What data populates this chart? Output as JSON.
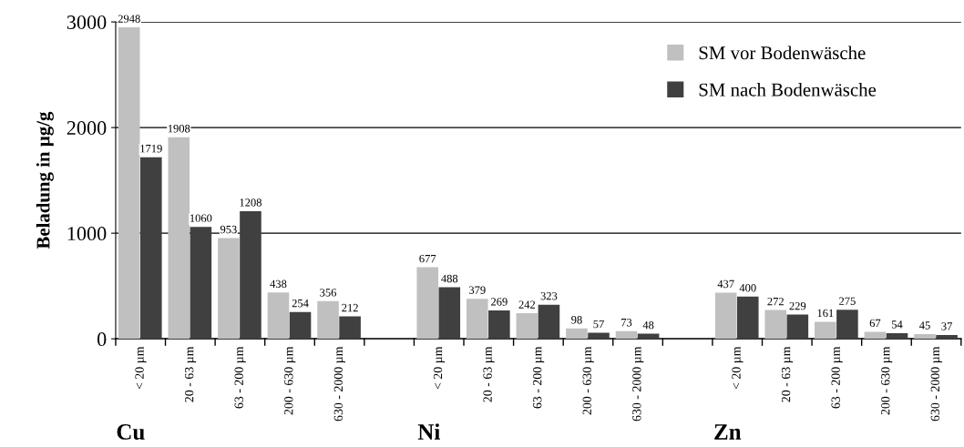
{
  "chart_data": {
    "type": "bar",
    "ylabel": "Beladung in µg/g",
    "categories": [
      "< 20 µm",
      "20 - 63 µm",
      "63 - 200 µm",
      "200 - 630 µm",
      "630 - 2000 µm",
      null,
      "< 20 µm",
      "20 - 63 µm",
      "63 - 200 µm",
      "200 - 630 µm",
      "630 - 2000 µm",
      null,
      "< 20 µm",
      "20 - 63 µm",
      "63 - 200 µm",
      "200 - 630 µm",
      "630 - 2000 µm"
    ],
    "series": [
      {
        "name": "SM vor Bodenwäsche",
        "color": "#c0c0c0",
        "values": [
          2948,
          1908,
          953,
          438,
          356,
          null,
          677,
          379,
          242,
          98,
          73,
          null,
          437,
          272,
          161,
          67,
          45
        ]
      },
      {
        "name": "SM nach Bodenwäsche",
        "color": "#404040",
        "values": [
          1719,
          1060,
          1208,
          254,
          212,
          null,
          488,
          269,
          323,
          57,
          48,
          null,
          400,
          229,
          275,
          54,
          37
        ]
      }
    ],
    "annotations": [
      "Cu",
      "Ni",
      "Zn"
    ],
    "ylim": [
      0,
      3000
    ],
    "yticks": [
      0,
      1000,
      2000,
      3000
    ],
    "grid": "y",
    "legend": "top right",
    "data_labels": true
  }
}
